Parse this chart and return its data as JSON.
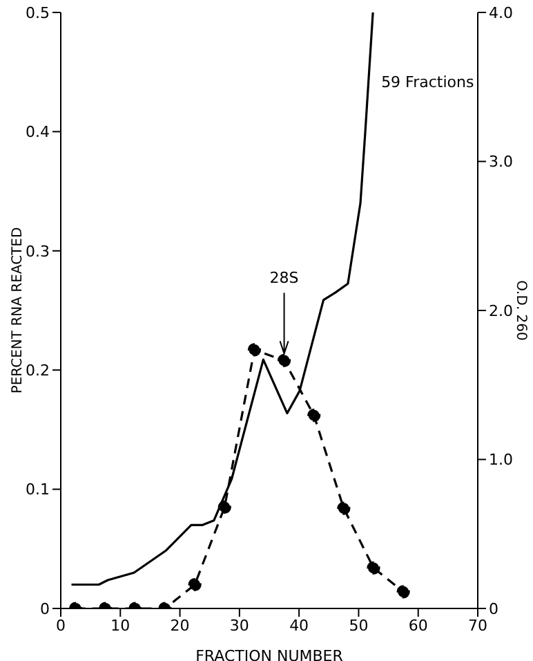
{
  "chart_data": {
    "type": "line",
    "xlabel": "FRACTION NUMBER",
    "ylabel": "PERCENT RNA REACTED",
    "y2label": "O.D. 260",
    "xlim": [
      0,
      70
    ],
    "xticks": [
      0,
      10,
      20,
      30,
      40,
      50,
      60,
      70
    ],
    "ylim": [
      0,
      0.5
    ],
    "yticks": [
      0,
      0.1,
      0.2,
      0.3,
      0.4,
      0.5
    ],
    "y2lim": [
      0,
      4
    ],
    "y2ticks": [
      0,
      {
        "value": 1,
        "label": "1.0"
      },
      {
        "value": 2,
        "label": "2.0"
      },
      {
        "value": 3,
        "label": "3.0"
      },
      {
        "value": 4,
        "label": "4.0"
      }
    ],
    "grid": false,
    "annotations": [
      {
        "text": "28S",
        "x": 37.5,
        "y": 0.208
      }
    ],
    "series": [
      {
        "name": "59 Fractions",
        "color": "#000000",
        "axis": "y2",
        "line_style": "solid",
        "marker": "none",
        "x": [
          1.8,
          6.4,
          7.9,
          12.3,
          17.7,
          21.9,
          23.8,
          25.7,
          28.7,
          34.0,
          38.0,
          40.1,
          44.1,
          46.1,
          48.2,
          50.3,
          51.1,
          52.4
        ],
        "values": [
          0.16,
          0.16,
          0.19,
          0.24,
          0.39,
          0.56,
          0.56,
          0.59,
          0.87,
          1.67,
          1.31,
          1.46,
          2.07,
          2.12,
          2.18,
          2.72,
          3.19,
          4.0
        ]
      },
      {
        "color": "#000000",
        "axis": "y",
        "line_style": "dashed",
        "marker": "circle",
        "x": [
          2.5,
          7.5,
          12.5,
          17.5,
          22.5,
          27.5,
          32.5,
          37.5,
          42.5,
          47.5,
          52.5,
          57.5
        ],
        "values": [
          0,
          0,
          0,
          0,
          0.02,
          0.085,
          0.217,
          0.208,
          0.162,
          0.084,
          0.034,
          0.014
        ]
      }
    ]
  }
}
